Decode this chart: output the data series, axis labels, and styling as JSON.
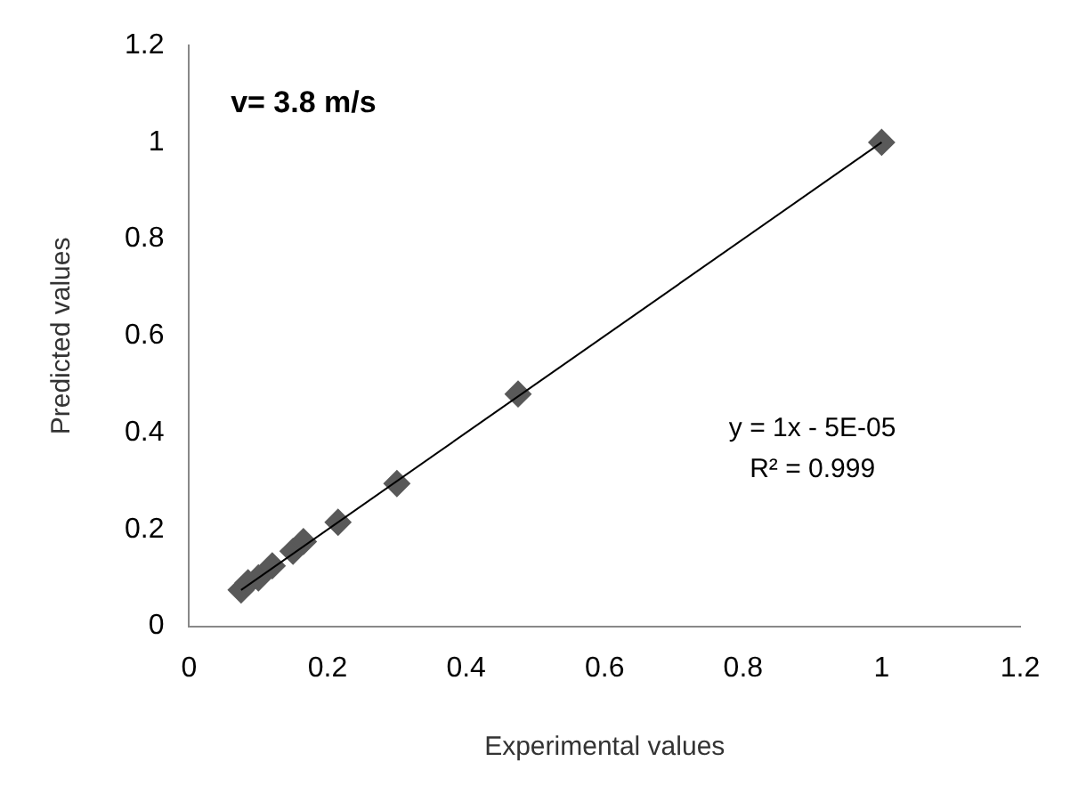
{
  "chart_data": {
    "type": "scatter",
    "xlabel": "Experimental values",
    "ylabel": "Predicted values",
    "annotations": [
      "v= 3.8 m/s",
      "y = 1x - 5E-05",
      "R² = 0.999"
    ],
    "xlim": [
      0,
      1.2
    ],
    "xticks": [
      0,
      0.2,
      0.4,
      0.6,
      0.8,
      1,
      1.2
    ],
    "ylim": [
      0,
      1.2
    ],
    "yticks": [
      0,
      0.2,
      0.4,
      0.6,
      0.8,
      1,
      1.2
    ],
    "grid": false,
    "legend": false,
    "marker": "diamond",
    "series": [
      {
        "type": "scatter",
        "color": "#595959",
        "x": [
          0.075,
          0.085,
          0.1,
          0.12,
          0.15,
          0.165,
          0.215,
          0.3,
          0.475,
          1
        ],
        "values": [
          0.075,
          0.09,
          0.1,
          0.125,
          0.155,
          0.175,
          0.215,
          0.295,
          0.48,
          1
        ]
      },
      {
        "type": "line",
        "color": "#000000",
        "marker": "none",
        "x": [
          0.075,
          1
        ],
        "values": [
          0.075,
          1
        ]
      }
    ]
  }
}
